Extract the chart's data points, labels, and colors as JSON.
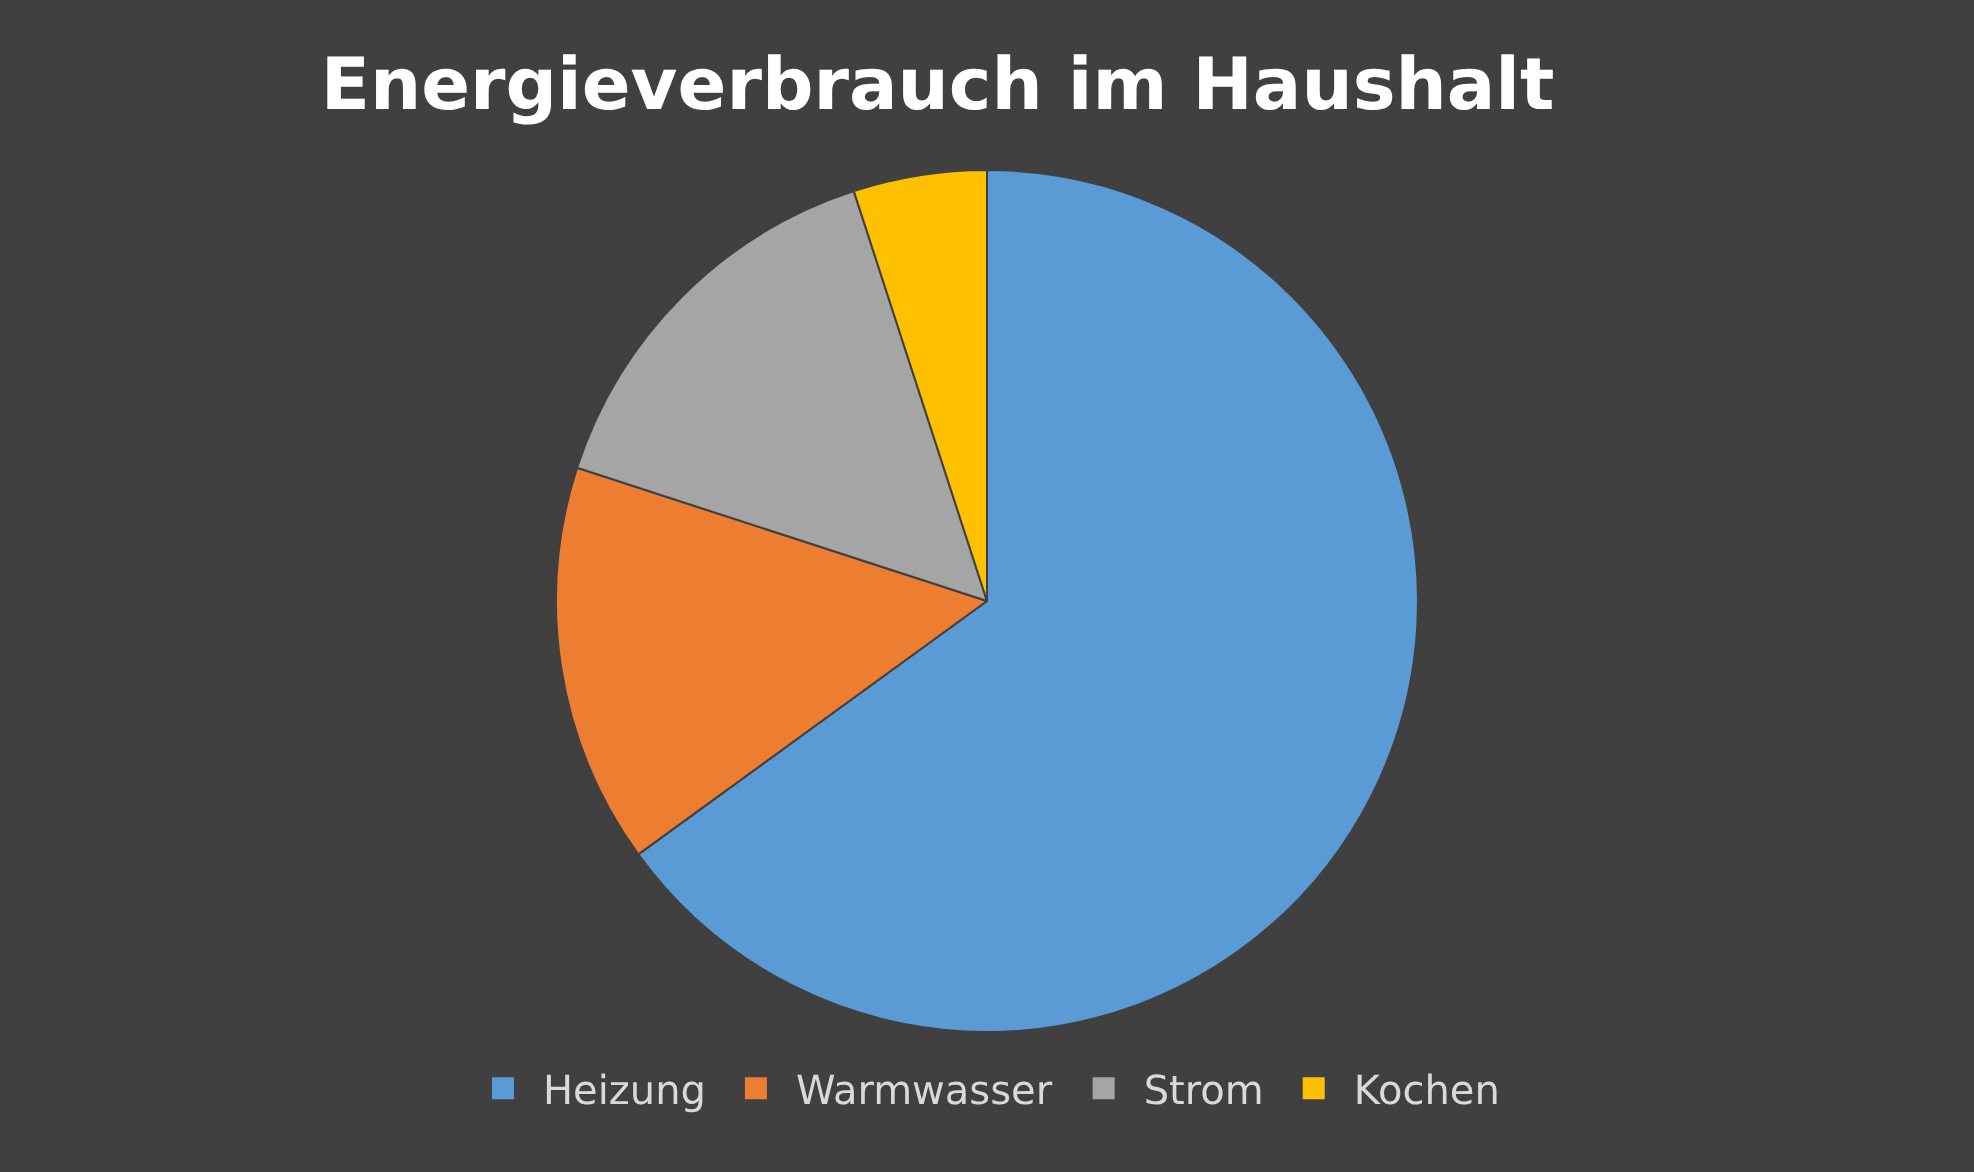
{
  "chart_data": {
    "type": "pie",
    "title": "Energieverbrauch im Haushalt",
    "categories": [
      "Heizung",
      "Warmwasser",
      "Strom",
      "Kochen"
    ],
    "values": [
      65,
      15,
      15,
      5
    ],
    "colors": [
      "#5b9bd5",
      "#ed7d31",
      "#a5a5a5",
      "#ffc000"
    ],
    "legend": "bottom"
  }
}
